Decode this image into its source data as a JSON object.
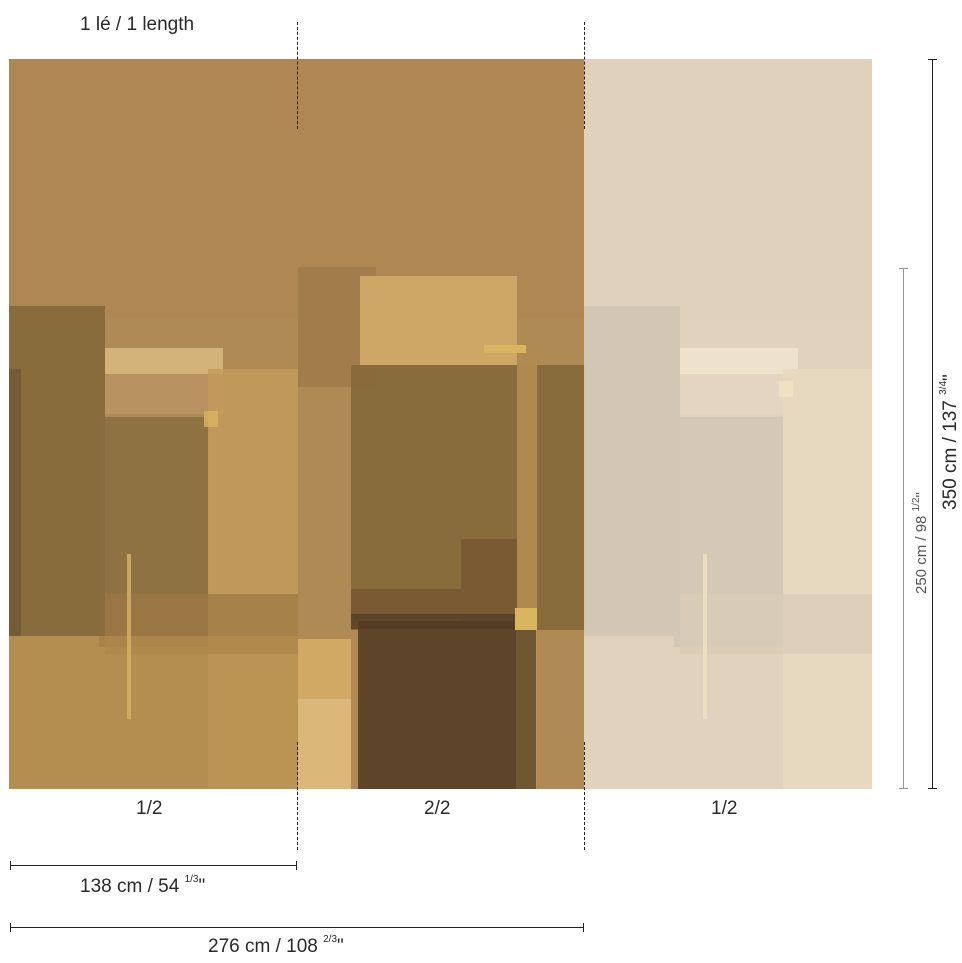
{
  "header": {
    "length_label": "1 lé / 1 length"
  },
  "panels": {
    "left": "1/2",
    "middle": "2/2",
    "right": "1/2"
  },
  "dimensions": {
    "width_one": {
      "main": "138 cm / 54",
      "frac": "1/3",
      "unit": "\""
    },
    "width_two": {
      "main": "276 cm / 108",
      "frac": "2/3",
      "unit": "\""
    },
    "height_full": {
      "main": "350 cm / 137",
      "frac": "3/4",
      "unit": "\""
    },
    "height_partial": {
      "main": "250 cm / 98",
      "frac": "1/2",
      "unit": "\""
    }
  },
  "colors": {
    "mural_base": "#b08a55",
    "ochre": "#c39a5a",
    "dark_brown": "#5e452a",
    "olive": "#85683a",
    "gold": "#d9b560"
  }
}
